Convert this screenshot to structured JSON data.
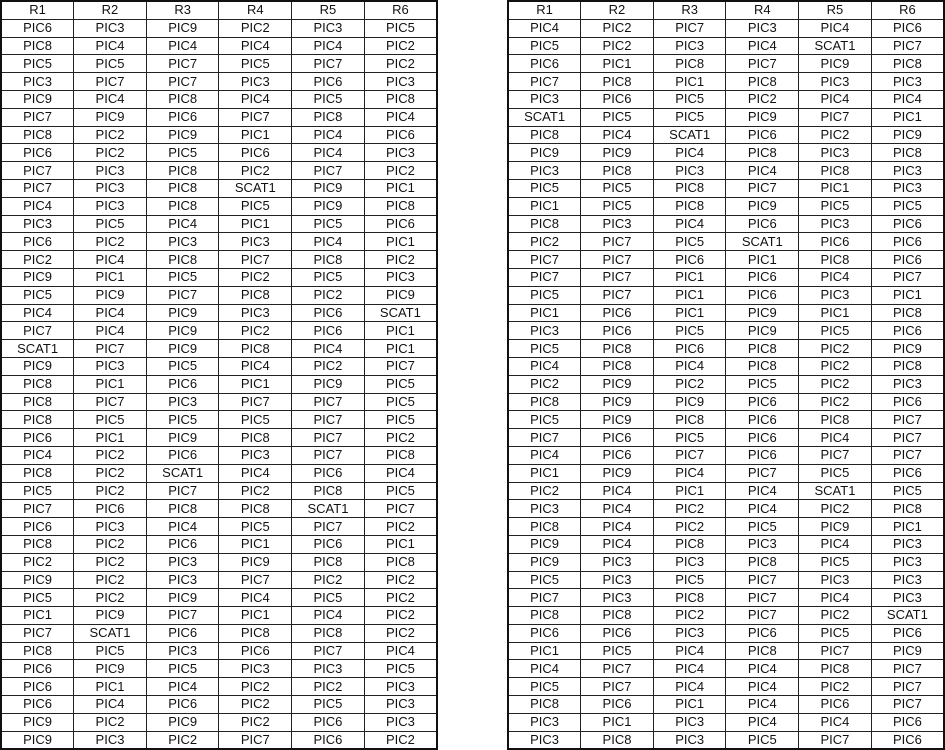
{
  "tables": [
    {
      "headers": [
        "R1",
        "R2",
        "R3",
        "R4",
        "R5",
        "R6"
      ],
      "rows": [
        [
          "PIC6",
          "PIC3",
          "PIC9",
          "PIC2",
          "PIC3",
          "PIC5"
        ],
        [
          "PIC8",
          "PIC4",
          "PIC4",
          "PIC4",
          "PIC4",
          "PIC2"
        ],
        [
          "PIC5",
          "PIC5",
          "PIC7",
          "PIC5",
          "PIC7",
          "PIC2"
        ],
        [
          "PIC3",
          "PIC7",
          "PIC7",
          "PIC3",
          "PIC6",
          "PIC3"
        ],
        [
          "PIC9",
          "PIC4",
          "PIC8",
          "PIC4",
          "PIC5",
          "PIC8"
        ],
        [
          "PIC7",
          "PIC9",
          "PIC6",
          "PIC7",
          "PIC8",
          "PIC4"
        ],
        [
          "PIC8",
          "PIC2",
          "PIC9",
          "PIC1",
          "PIC4",
          "PIC6"
        ],
        [
          "PIC6",
          "PIC2",
          "PIC5",
          "PIC6",
          "PIC4",
          "PIC3"
        ],
        [
          "PIC7",
          "PIC3",
          "PIC8",
          "PIC2",
          "PIC7",
          "PIC2"
        ],
        [
          "PIC7",
          "PIC3",
          "PIC8",
          "SCAT1",
          "PIC9",
          "PIC1"
        ],
        [
          "PIC4",
          "PIC3",
          "PIC8",
          "PIC5",
          "PIC9",
          "PIC8"
        ],
        [
          "PIC3",
          "PIC5",
          "PIC4",
          "PIC1",
          "PIC5",
          "PIC6"
        ],
        [
          "PIC6",
          "PIC2",
          "PIC3",
          "PIC3",
          "PIC4",
          "PIC1"
        ],
        [
          "PIC2",
          "PIC4",
          "PIC8",
          "PIC7",
          "PIC8",
          "PIC2"
        ],
        [
          "PIC9",
          "PIC1",
          "PIC5",
          "PIC2",
          "PIC5",
          "PIC3"
        ],
        [
          "PIC5",
          "PIC9",
          "PIC7",
          "PIC8",
          "PIC2",
          "PIC9"
        ],
        [
          "PIC4",
          "PIC4",
          "PIC9",
          "PIC3",
          "PIC6",
          "SCAT1"
        ],
        [
          "PIC7",
          "PIC4",
          "PIC9",
          "PIC2",
          "PIC6",
          "PIC1"
        ],
        [
          "SCAT1",
          "PIC7",
          "PIC9",
          "PIC8",
          "PIC4",
          "PIC1"
        ],
        [
          "PIC9",
          "PIC3",
          "PIC5",
          "PIC4",
          "PIC2",
          "PIC7"
        ],
        [
          "PIC8",
          "PIC1",
          "PIC6",
          "PIC1",
          "PIC9",
          "PIC5"
        ],
        [
          "PIC8",
          "PIC7",
          "PIC3",
          "PIC7",
          "PIC7",
          "PIC5"
        ],
        [
          "PIC8",
          "PIC5",
          "PIC5",
          "PIC5",
          "PIC7",
          "PIC5"
        ],
        [
          "PIC6",
          "PIC1",
          "PIC9",
          "PIC8",
          "PIC7",
          "PIC2"
        ],
        [
          "PIC4",
          "PIC2",
          "PIC6",
          "PIC3",
          "PIC7",
          "PIC8"
        ],
        [
          "PIC8",
          "PIC2",
          "SCAT1",
          "PIC4",
          "PIC6",
          "PIC4"
        ],
        [
          "PIC5",
          "PIC2",
          "PIC7",
          "PIC2",
          "PIC8",
          "PIC5"
        ],
        [
          "PIC7",
          "PIC6",
          "PIC8",
          "PIC8",
          "SCAT1",
          "PIC7"
        ],
        [
          "PIC6",
          "PIC3",
          "PIC4",
          "PIC5",
          "PIC7",
          "PIC2"
        ],
        [
          "PIC8",
          "PIC2",
          "PIC6",
          "PIC1",
          "PIC6",
          "PIC1"
        ],
        [
          "PIC2",
          "PIC2",
          "PIC3",
          "PIC9",
          "PIC8",
          "PIC8"
        ],
        [
          "PIC9",
          "PIC2",
          "PIC3",
          "PIC7",
          "PIC2",
          "PIC2"
        ],
        [
          "PIC5",
          "PIC2",
          "PIC9",
          "PIC4",
          "PIC5",
          "PIC2"
        ],
        [
          "PIC1",
          "PIC9",
          "PIC7",
          "PIC1",
          "PIC4",
          "PIC2"
        ],
        [
          "PIC7",
          "SCAT1",
          "PIC6",
          "PIC8",
          "PIC8",
          "PIC2"
        ],
        [
          "PIC8",
          "PIC5",
          "PIC3",
          "PIC6",
          "PIC7",
          "PIC4"
        ],
        [
          "PIC6",
          "PIC9",
          "PIC5",
          "PIC3",
          "PIC3",
          "PIC5"
        ],
        [
          "PIC6",
          "PIC1",
          "PIC4",
          "PIC2",
          "PIC2",
          "PIC3"
        ],
        [
          "PIC6",
          "PIC4",
          "PIC6",
          "PIC2",
          "PIC5",
          "PIC3"
        ],
        [
          "PIC9",
          "PIC2",
          "PIC9",
          "PIC2",
          "PIC6",
          "PIC3"
        ],
        [
          "PIC9",
          "PIC3",
          "PIC2",
          "PIC7",
          "PIC6",
          "PIC2"
        ]
      ]
    },
    {
      "headers": [
        "R1",
        "R2",
        "R3",
        "R4",
        "R5",
        "R6"
      ],
      "rows": [
        [
          "PIC4",
          "PIC2",
          "PIC7",
          "PIC3",
          "PIC4",
          "PIC6"
        ],
        [
          "PIC5",
          "PIC2",
          "PIC3",
          "PIC4",
          "SCAT1",
          "PIC7"
        ],
        [
          "PIC6",
          "PIC1",
          "PIC8",
          "PIC7",
          "PIC9",
          "PIC8"
        ],
        [
          "PIC7",
          "PIC8",
          "PIC1",
          "PIC8",
          "PIC3",
          "PIC3"
        ],
        [
          "PIC3",
          "PIC6",
          "PIC5",
          "PIC2",
          "PIC4",
          "PIC4"
        ],
        [
          "SCAT1",
          "PIC5",
          "PIC5",
          "PIC9",
          "PIC7",
          "PIC1"
        ],
        [
          "PIC8",
          "PIC4",
          "SCAT1",
          "PIC6",
          "PIC2",
          "PIC9"
        ],
        [
          "PIC9",
          "PIC9",
          "PIC4",
          "PIC8",
          "PIC3",
          "PIC8"
        ],
        [
          "PIC3",
          "PIC8",
          "PIC3",
          "PIC4",
          "PIC8",
          "PIC3"
        ],
        [
          "PIC5",
          "PIC5",
          "PIC8",
          "PIC7",
          "PIC1",
          "PIC3"
        ],
        [
          "PIC1",
          "PIC5",
          "PIC8",
          "PIC9",
          "PIC5",
          "PIC5"
        ],
        [
          "PIC8",
          "PIC3",
          "PIC4",
          "PIC6",
          "PIC3",
          "PIC6"
        ],
        [
          "PIC2",
          "PIC7",
          "PIC5",
          "SCAT1",
          "PIC6",
          "PIC6"
        ],
        [
          "PIC7",
          "PIC7",
          "PIC6",
          "PIC1",
          "PIC8",
          "PIC6"
        ],
        [
          "PIC7",
          "PIC7",
          "PIC1",
          "PIC6",
          "PIC4",
          "PIC7"
        ],
        [
          "PIC5",
          "PIC7",
          "PIC1",
          "PIC6",
          "PIC3",
          "PIC1"
        ],
        [
          "PIC1",
          "PIC6",
          "PIC1",
          "PIC9",
          "PIC1",
          "PIC8"
        ],
        [
          "PIC3",
          "PIC6",
          "PIC5",
          "PIC9",
          "PIC5",
          "PIC6"
        ],
        [
          "PIC5",
          "PIC8",
          "PIC6",
          "PIC8",
          "PIC2",
          "PIC9"
        ],
        [
          "PIC4",
          "PIC8",
          "PIC4",
          "PIC8",
          "PIC2",
          "PIC8"
        ],
        [
          "PIC2",
          "PIC9",
          "PIC2",
          "PIC5",
          "PIC2",
          "PIC3"
        ],
        [
          "PIC8",
          "PIC9",
          "PIC9",
          "PIC6",
          "PIC2",
          "PIC6"
        ],
        [
          "PIC5",
          "PIC9",
          "PIC8",
          "PIC6",
          "PIC8",
          "PIC7"
        ],
        [
          "PIC7",
          "PIC6",
          "PIC5",
          "PIC6",
          "PIC4",
          "PIC7"
        ],
        [
          "PIC4",
          "PIC6",
          "PIC7",
          "PIC6",
          "PIC7",
          "PIC7"
        ],
        [
          "PIC1",
          "PIC9",
          "PIC4",
          "PIC7",
          "PIC5",
          "PIC6"
        ],
        [
          "PIC2",
          "PIC4",
          "PIC1",
          "PIC4",
          "SCAT1",
          "PIC5"
        ],
        [
          "PIC3",
          "PIC4",
          "PIC2",
          "PIC4",
          "PIC2",
          "PIC8"
        ],
        [
          "PIC8",
          "PIC4",
          "PIC2",
          "PIC5",
          "PIC9",
          "PIC1"
        ],
        [
          "PIC9",
          "PIC4",
          "PIC8",
          "PIC3",
          "PIC4",
          "PIC3"
        ],
        [
          "PIC9",
          "PIC3",
          "PIC3",
          "PIC8",
          "PIC5",
          "PIC3"
        ],
        [
          "PIC5",
          "PIC3",
          "PIC5",
          "PIC7",
          "PIC3",
          "PIC3"
        ],
        [
          "PIC7",
          "PIC3",
          "PIC8",
          "PIC7",
          "PIC4",
          "PIC3"
        ],
        [
          "PIC8",
          "PIC8",
          "PIC2",
          "PIC7",
          "PIC2",
          "SCAT1"
        ],
        [
          "PIC6",
          "PIC6",
          "PIC3",
          "PIC6",
          "PIC5",
          "PIC6"
        ],
        [
          "PIC1",
          "PIC5",
          "PIC4",
          "PIC8",
          "PIC7",
          "PIC9"
        ],
        [
          "PIC4",
          "PIC7",
          "PIC4",
          "PIC4",
          "PIC8",
          "PIC7"
        ],
        [
          "PIC5",
          "PIC7",
          "PIC4",
          "PIC4",
          "PIC2",
          "PIC7"
        ],
        [
          "PIC8",
          "PIC6",
          "PIC1",
          "PIC4",
          "PIC6",
          "PIC7"
        ],
        [
          "PIC3",
          "PIC1",
          "PIC3",
          "PIC4",
          "PIC4",
          "PIC6"
        ],
        [
          "PIC3",
          "PIC8",
          "PIC3",
          "PIC5",
          "PIC7",
          "PIC6"
        ]
      ]
    }
  ]
}
